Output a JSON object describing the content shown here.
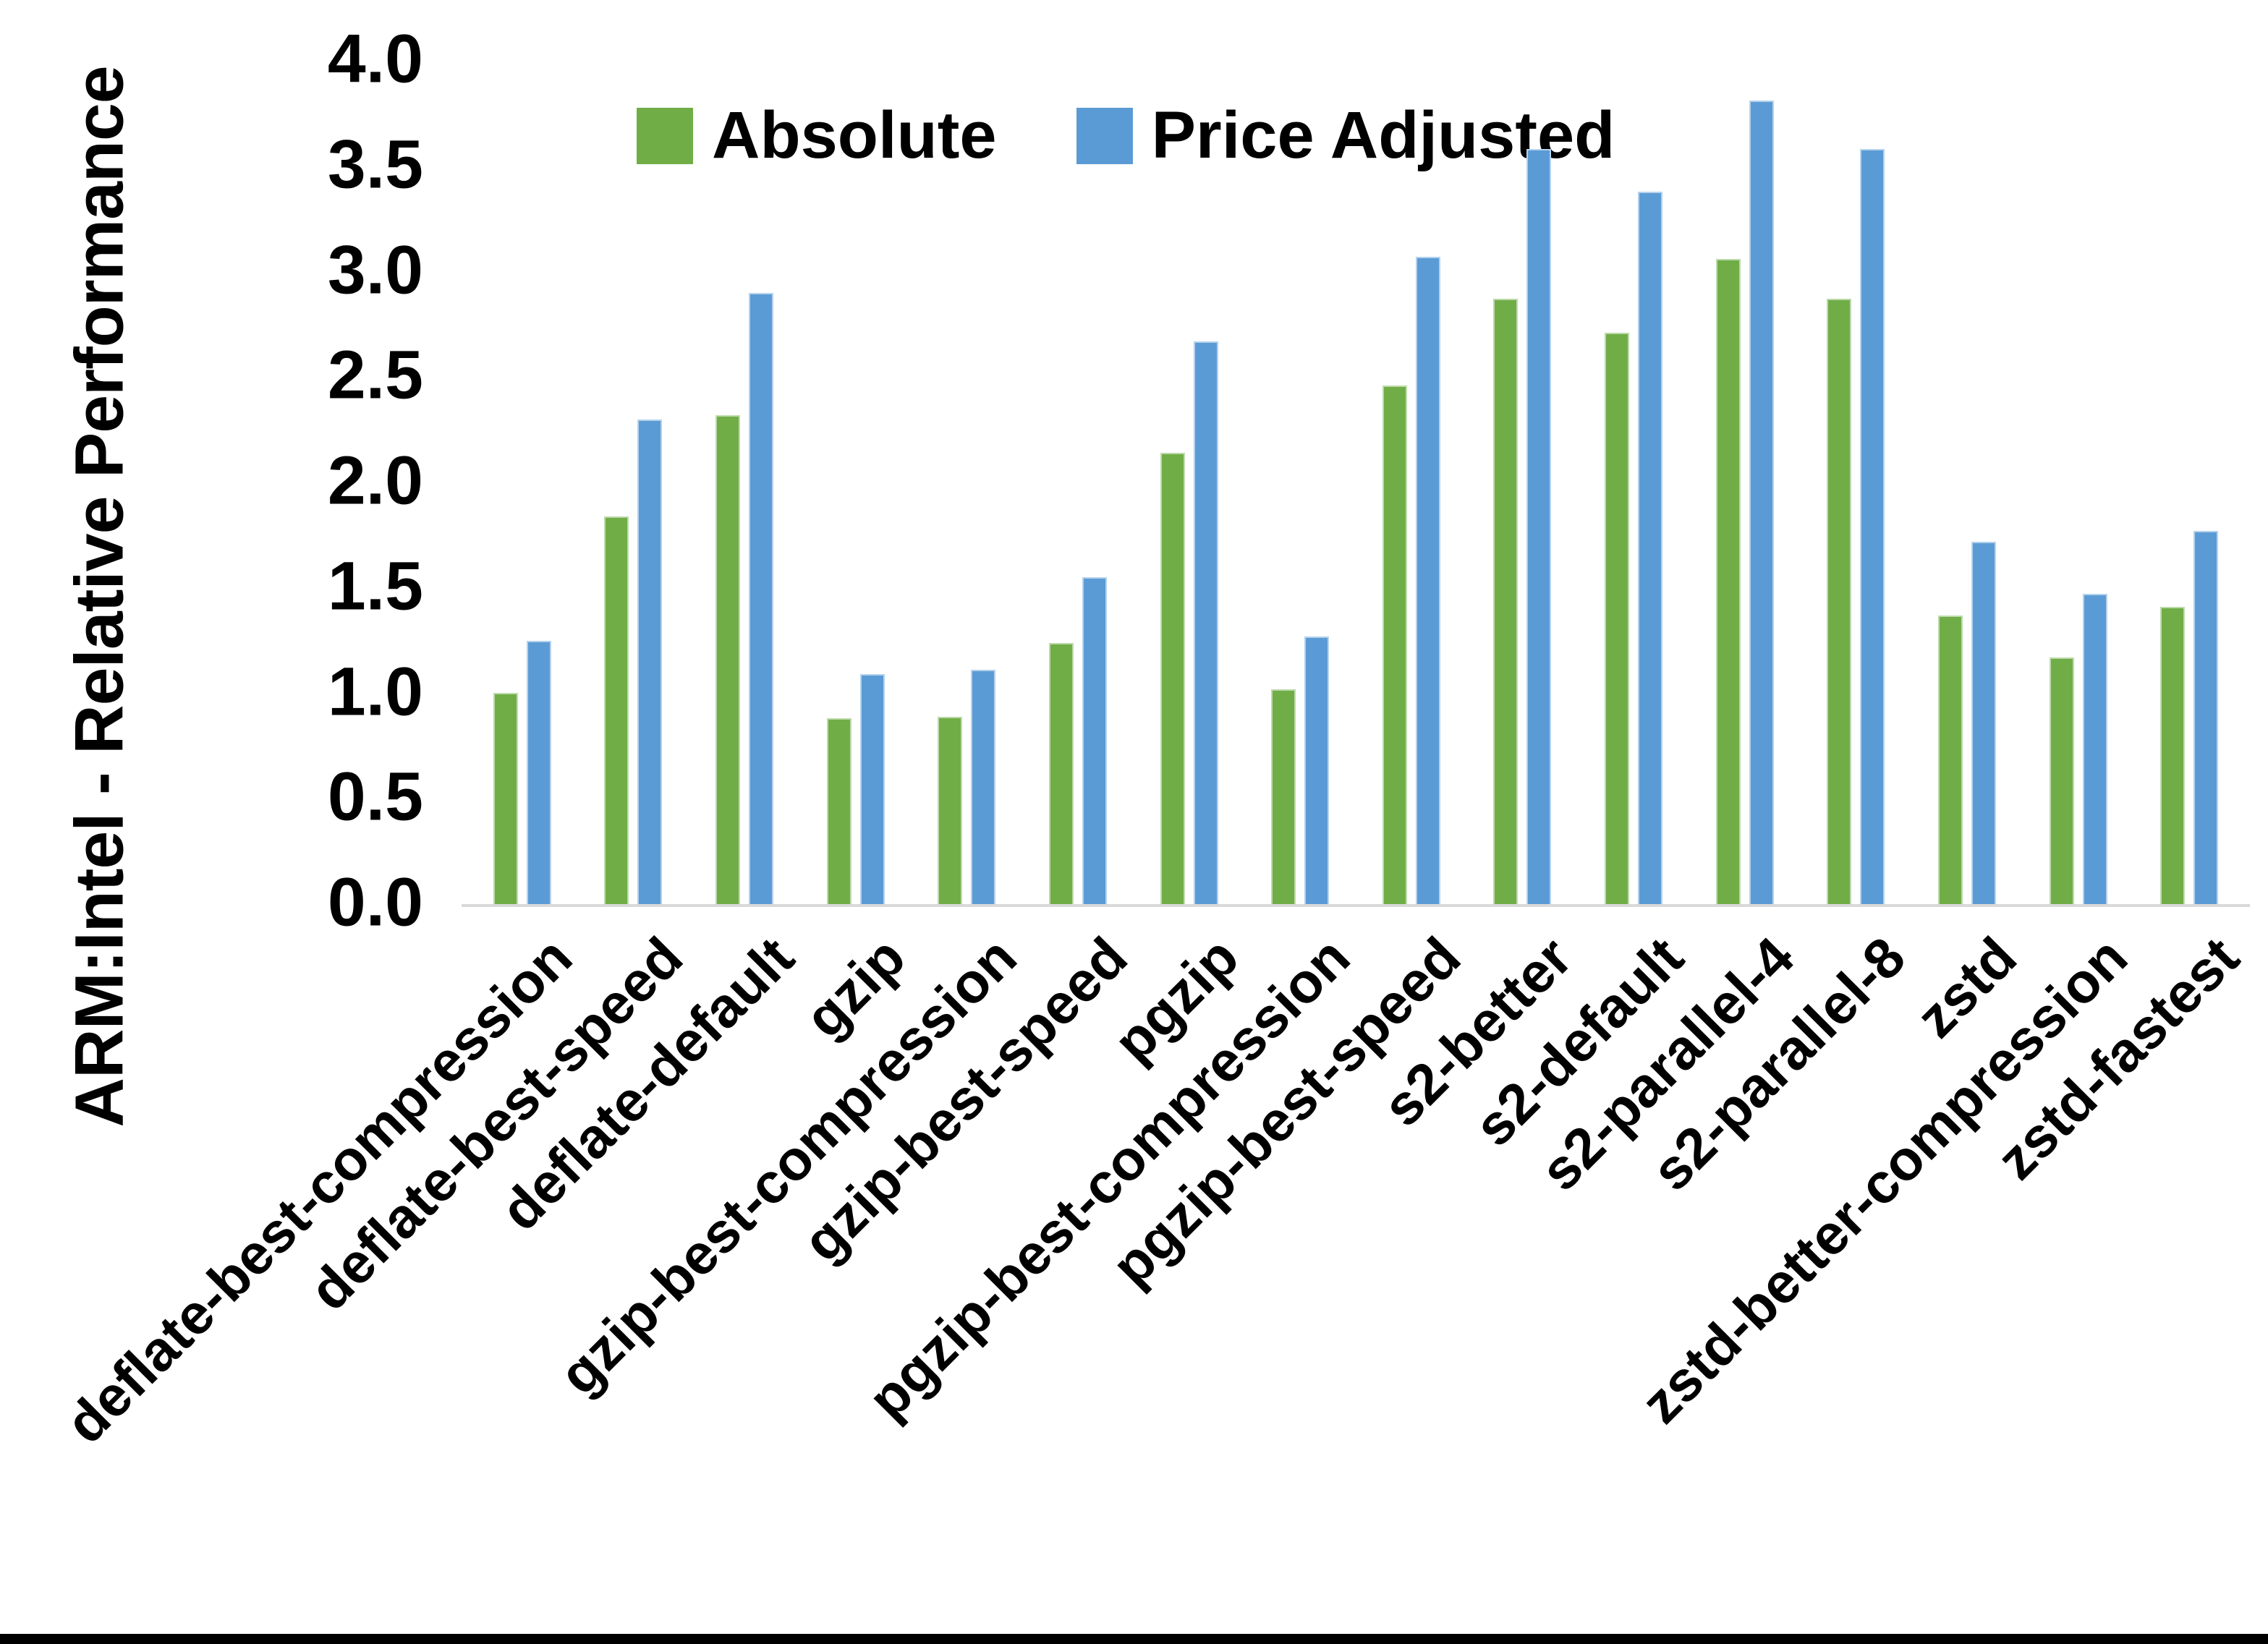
{
  "chart_data": {
    "type": "bar",
    "title": "",
    "xlabel": "",
    "ylabel": "ARM:Intel - Relative Performance",
    "ylim": [
      0.0,
      4.0
    ],
    "ytick_step": 0.5,
    "ytick_labels": [
      "0.0",
      "0.5",
      "1.0",
      "1.5",
      "2.0",
      "2.5",
      "3.0",
      "3.5",
      "4.0"
    ],
    "grid": false,
    "legend_position": "top-center",
    "axis_line_color": "#D9D9D9",
    "text_color": "#000000",
    "background_color": "#FFFFFF",
    "categories": [
      "deflate-best-compression",
      "deflate-best-speed",
      "deflate-default",
      "gzip",
      "gzip-best-compression",
      "gzip-best-speed",
      "pgzip",
      "pgzip-best-compression",
      "pgzip-best-speed",
      "s2-better",
      "s2-default",
      "s2-parallel-4",
      "s2-parallel-8",
      "zstd",
      "zstd-better-compression",
      "zstd-fastest"
    ],
    "series": [
      {
        "name": "Absolute",
        "color": "#70AD47",
        "values": [
          1.0,
          1.84,
          2.32,
          0.88,
          0.89,
          1.24,
          2.14,
          1.02,
          2.46,
          2.87,
          2.71,
          3.06,
          2.87,
          1.37,
          1.17,
          1.41
        ]
      },
      {
        "name": "Price Adjusted",
        "color": "#5B9BD5",
        "values": [
          1.25,
          2.3,
          2.9,
          1.09,
          1.11,
          1.55,
          2.67,
          1.27,
          3.07,
          3.58,
          3.38,
          3.81,
          3.58,
          1.72,
          1.47,
          1.77
        ]
      }
    ]
  },
  "window": {
    "bottom_border_color": "#000000"
  }
}
